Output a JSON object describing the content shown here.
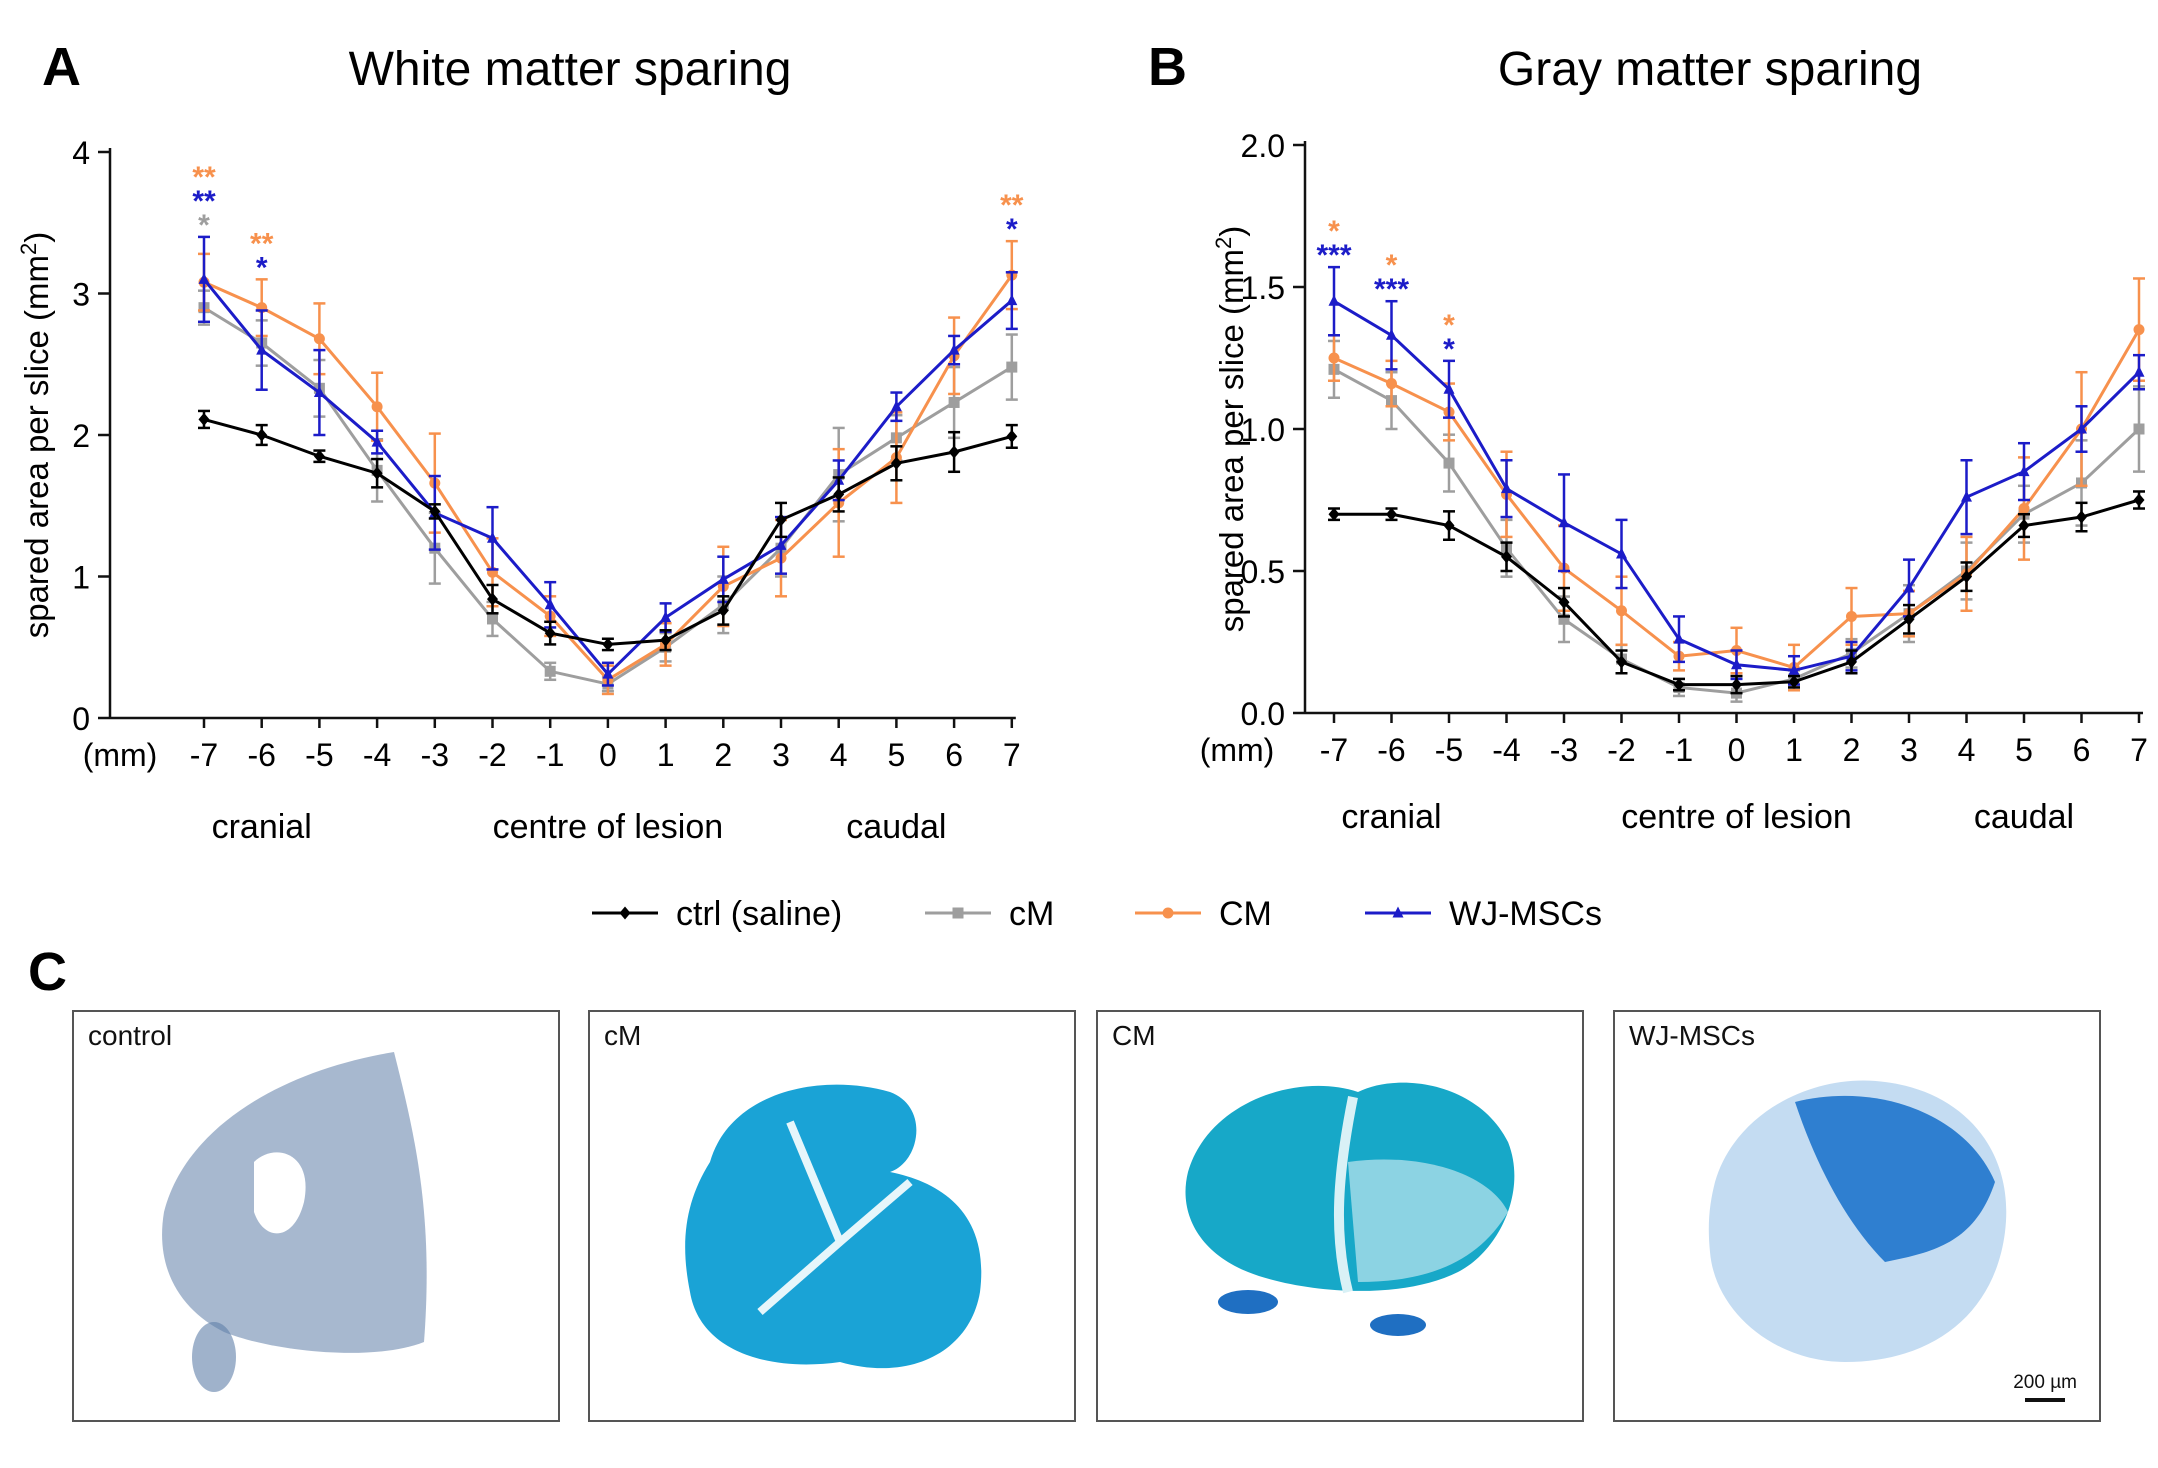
{
  "panels": {
    "a_letter": "A",
    "b_letter": "B",
    "c_letter": "C"
  },
  "series_styles": [
    {
      "name": "ctrl (saline)",
      "color": "#000000",
      "marker": "diamond"
    },
    {
      "name": "cM",
      "color": "#9e9e9e",
      "marker": "square"
    },
    {
      "name": "CM",
      "color": "#f7914d",
      "marker": "circle"
    },
    {
      "name": "WJ-MSCs",
      "color": "#1c1cc8",
      "marker": "triangle"
    }
  ],
  "chart_data": [
    {
      "type": "line",
      "title": "White matter sparing",
      "xlabel": "(mm)",
      "ylabel": "spared area per slice (mm²)",
      "x": [
        -7,
        -6,
        -5,
        -4,
        -3,
        -2,
        -1,
        0,
        1,
        2,
        3,
        4,
        5,
        6,
        7
      ],
      "x_tick_labels": [
        "-7",
        "-6",
        "-5",
        "-4",
        "-3",
        "-2",
        "-1",
        "0",
        "1",
        "2",
        "3",
        "4",
        "5",
        "6",
        "7"
      ],
      "ylim": [
        0,
        4
      ],
      "y_ticks": [
        0,
        1,
        2,
        3,
        4
      ],
      "y_tick_labels": [
        "0",
        "1",
        "2",
        "3",
        "4"
      ],
      "region_labels": [
        {
          "text": "cranial",
          "x": -6
        },
        {
          "text": "centre of lesion",
          "x": 0
        },
        {
          "text": "caudal",
          "x": 5
        }
      ],
      "series": [
        {
          "name": "ctrl (saline)",
          "values": [
            2.11,
            2.0,
            1.85,
            1.73,
            1.46,
            0.84,
            0.6,
            0.52,
            0.55,
            0.76,
            1.4,
            1.58,
            1.8,
            1.88,
            1.99
          ],
          "errors": [
            0.06,
            0.07,
            0.04,
            0.1,
            0.05,
            0.1,
            0.08,
            0.04,
            0.07,
            0.1,
            0.12,
            0.12,
            0.12,
            0.14,
            0.08
          ]
        },
        {
          "name": "cM",
          "values": [
            2.9,
            2.65,
            2.33,
            1.75,
            1.2,
            0.7,
            0.33,
            0.24,
            0.5,
            0.8,
            1.2,
            1.72,
            1.98,
            2.23,
            2.48
          ],
          "errors": [
            0.12,
            0.16,
            0.2,
            0.22,
            0.25,
            0.12,
            0.06,
            0.05,
            0.1,
            0.2,
            0.2,
            0.33,
            0.16,
            0.25,
            0.23
          ]
        },
        {
          "name": "CM",
          "values": [
            3.08,
            2.9,
            2.68,
            2.2,
            1.66,
            1.03,
            0.72,
            0.27,
            0.52,
            0.93,
            1.13,
            1.52,
            1.84,
            2.56,
            3.13
          ],
          "errors": [
            0.2,
            0.2,
            0.25,
            0.24,
            0.35,
            0.24,
            0.14,
            0.1,
            0.15,
            0.28,
            0.27,
            0.38,
            0.32,
            0.27,
            0.24
          ]
        },
        {
          "name": "WJ-MSCs",
          "values": [
            3.1,
            2.6,
            2.3,
            1.95,
            1.45,
            1.27,
            0.8,
            0.31,
            0.71,
            0.98,
            1.22,
            1.68,
            2.2,
            2.6,
            2.95
          ],
          "errors": [
            0.3,
            0.28,
            0.3,
            0.08,
            0.26,
            0.22,
            0.16,
            0.08,
            0.1,
            0.16,
            0.2,
            0.14,
            0.1,
            0.1,
            0.2
          ]
        }
      ],
      "annotations": [
        {
          "x": -7,
          "text": "**",
          "series": "CM"
        },
        {
          "x": -7,
          "text": "**",
          "series": "WJ-MSCs"
        },
        {
          "x": -7,
          "text": "*",
          "series": "cM"
        },
        {
          "x": -6,
          "text": "**",
          "series": "CM"
        },
        {
          "x": -6,
          "text": "*",
          "series": "WJ-MSCs"
        },
        {
          "x": 7,
          "text": "**",
          "series": "CM"
        },
        {
          "x": 7,
          "text": "*",
          "series": "WJ-MSCs"
        }
      ]
    },
    {
      "type": "line",
      "title": "Gray matter sparing",
      "xlabel": "(mm)",
      "ylabel": "spared area per slice (mm²)",
      "x": [
        -7,
        -6,
        -5,
        -4,
        -3,
        -2,
        -1,
        0,
        1,
        2,
        3,
        4,
        5,
        6,
        7
      ],
      "x_tick_labels": [
        "-7",
        "-6",
        "-5",
        "-4",
        "-3",
        "-2",
        "-1",
        "0",
        "1",
        "2",
        "3",
        "4",
        "5",
        "6",
        "7"
      ],
      "ylim": [
        0,
        2.0
      ],
      "y_ticks": [
        0,
        0.5,
        1.0,
        1.5,
        2.0
      ],
      "y_tick_labels": [
        "0.0",
        "0.5",
        "1.0",
        "1.5",
        "2.0"
      ],
      "region_labels": [
        {
          "text": "cranial",
          "x": -6
        },
        {
          "text": "centre of lesion",
          "x": 0
        },
        {
          "text": "caudal",
          "x": 5
        }
      ],
      "series": [
        {
          "name": "ctrl (saline)",
          "values": [
            0.7,
            0.7,
            0.66,
            0.55,
            0.39,
            0.18,
            0.1,
            0.1,
            0.11,
            0.18,
            0.33,
            0.48,
            0.66,
            0.69,
            0.75
          ],
          "errors": [
            0.02,
            0.02,
            0.05,
            0.05,
            0.05,
            0.04,
            0.02,
            0.03,
            0.02,
            0.04,
            0.05,
            0.05,
            0.04,
            0.05,
            0.03
          ]
        },
        {
          "name": "cM",
          "values": [
            1.21,
            1.1,
            0.88,
            0.58,
            0.33,
            0.19,
            0.09,
            0.07,
            0.12,
            0.21,
            0.35,
            0.5,
            0.7,
            0.81,
            1.0
          ],
          "errors": [
            0.1,
            0.1,
            0.1,
            0.1,
            0.08,
            0.05,
            0.03,
            0.03,
            0.03,
            0.05,
            0.1,
            0.1,
            0.1,
            0.15,
            0.15
          ]
        },
        {
          "name": "CM",
          "values": [
            1.25,
            1.16,
            1.06,
            0.77,
            0.51,
            0.36,
            0.2,
            0.22,
            0.16,
            0.34,
            0.35,
            0.49,
            0.72,
            1.0,
            1.35
          ],
          "errors": [
            0.08,
            0.08,
            0.1,
            0.15,
            0.15,
            0.12,
            0.05,
            0.08,
            0.08,
            0.1,
            0.08,
            0.13,
            0.18,
            0.2,
            0.18
          ]
        },
        {
          "name": "WJ-MSCs",
          "values": [
            1.45,
            1.33,
            1.14,
            0.79,
            0.67,
            0.56,
            0.26,
            0.17,
            0.15,
            0.2,
            0.44,
            0.76,
            0.85,
            1.0,
            1.2
          ],
          "errors": [
            0.12,
            0.12,
            0.1,
            0.1,
            0.17,
            0.12,
            0.08,
            0.05,
            0.05,
            0.05,
            0.1,
            0.13,
            0.1,
            0.08,
            0.06
          ]
        }
      ],
      "annotations": [
        {
          "x": -7,
          "text": "*",
          "series": "CM"
        },
        {
          "x": -7,
          "text": "***",
          "series": "WJ-MSCs"
        },
        {
          "x": -6,
          "text": "*",
          "series": "CM"
        },
        {
          "x": -6,
          "text": "***",
          "series": "WJ-MSCs"
        },
        {
          "x": -5,
          "text": "*",
          "series": "CM"
        },
        {
          "x": -5,
          "text": "*",
          "series": "WJ-MSCs"
        }
      ]
    }
  ],
  "legend": [
    "ctrl (saline)",
    "cM",
    "CM",
    "WJ-MSCs"
  ],
  "images": [
    {
      "label": "control",
      "stain": "#5f7ea8"
    },
    {
      "label": "cM",
      "stain": "#1aa3d6"
    },
    {
      "label": "CM",
      "stain": "#17a8c8"
    },
    {
      "label": "WJ-MSCs",
      "stain": "#2f7fd0"
    }
  ],
  "scale_bar": "200 µm"
}
